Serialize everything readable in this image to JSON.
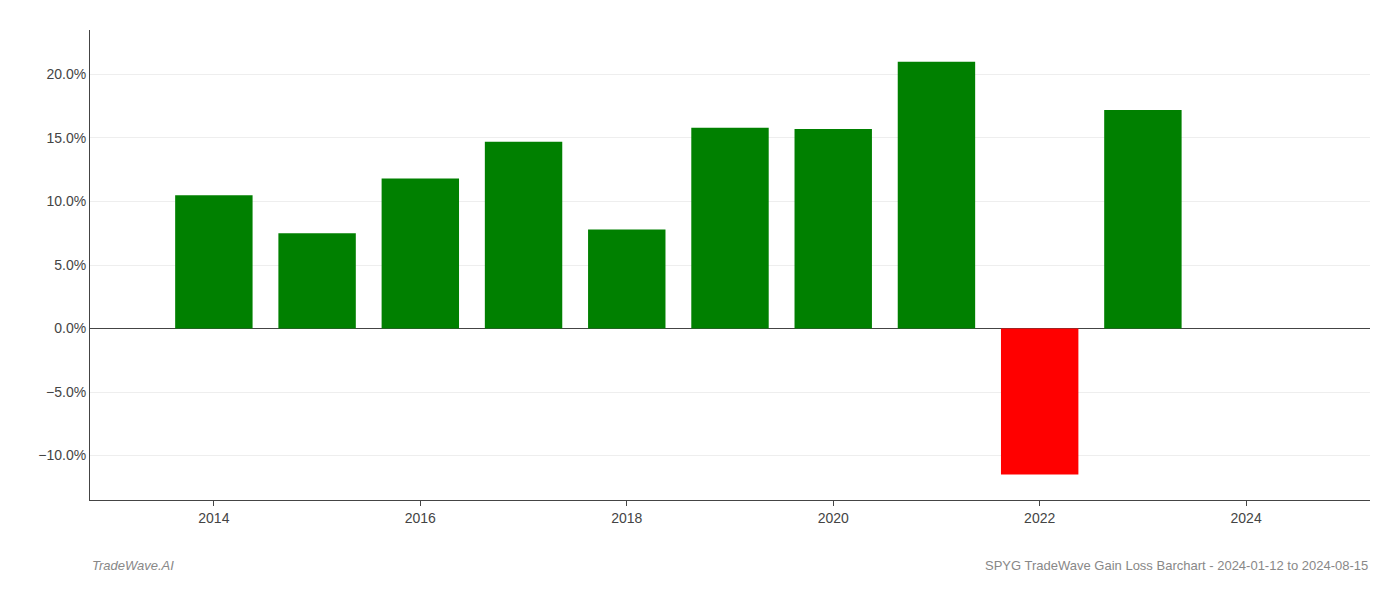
{
  "chart_data": {
    "type": "bar",
    "x": [
      2014,
      2015,
      2016,
      2017,
      2018,
      2019,
      2020,
      2021,
      2022,
      2023
    ],
    "values": [
      0.105,
      0.075,
      0.118,
      0.147,
      0.078,
      0.158,
      0.157,
      0.21,
      -0.115,
      0.172
    ],
    "colors": [
      "#008000",
      "#008000",
      "#008000",
      "#008000",
      "#008000",
      "#008000",
      "#008000",
      "#008000",
      "#ff0000",
      "#008000"
    ],
    "xlim": [
      2012.8,
      2025.2
    ],
    "xticks": [
      2014,
      2016,
      2018,
      2020,
      2022,
      2024
    ],
    "ylim": [
      -0.135,
      0.235
    ],
    "yticks": [
      {
        "value": -0.1,
        "label": "−10.0%"
      },
      {
        "value": -0.05,
        "label": "−5.0%"
      },
      {
        "value": 0.0,
        "label": "0.0%"
      },
      {
        "value": 0.05,
        "label": "5.0%"
      },
      {
        "value": 0.1,
        "label": "10.0%"
      },
      {
        "value": 0.15,
        "label": "15.0%"
      },
      {
        "value": 0.2,
        "label": "20.0%"
      }
    ],
    "grid": "y",
    "annotations": [
      "TradeWave.AI",
      "SPYG TradeWave Gain Loss Barchart - 2024-01-12 to 2024-08-15"
    ]
  }
}
